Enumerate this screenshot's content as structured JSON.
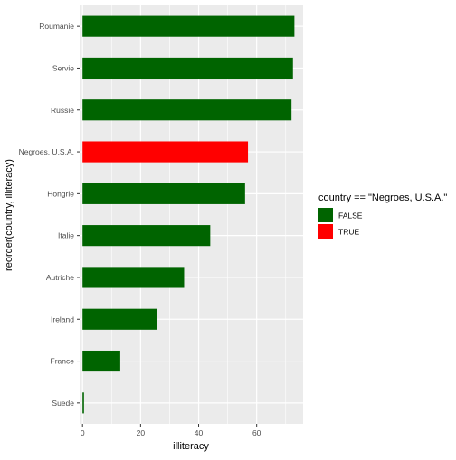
{
  "chart_data": {
    "type": "bar",
    "orientation": "horizontal",
    "categories": [
      "Suede",
      "France",
      "Ireland",
      "Autriche",
      "Italie",
      "Hongrie",
      "Negroes, U.S.A.",
      "Russie",
      "Servie",
      "Roumanie"
    ],
    "values": [
      0.5,
      13,
      25.5,
      35,
      44,
      56,
      57,
      72,
      72.5,
      73
    ],
    "highlight": [
      false,
      false,
      false,
      false,
      false,
      false,
      true,
      false,
      false,
      false
    ],
    "xlabel": "illiteracy",
    "ylabel": "reorder(country, illiteracy)",
    "xlim": [
      -1,
      76
    ],
    "xticks": [
      0,
      20,
      40,
      60
    ],
    "grid": true,
    "legend": {
      "title": "country == \"Negroes, U.S.A.\"",
      "position": "right",
      "entries": [
        {
          "label": "FALSE",
          "color": "#006400"
        },
        {
          "label": "TRUE",
          "color": "#ff0000"
        }
      ]
    },
    "colors": {
      "false": "#006400",
      "true": "#ff0000",
      "panel": "#ebebeb",
      "grid": "#ffffff"
    }
  }
}
